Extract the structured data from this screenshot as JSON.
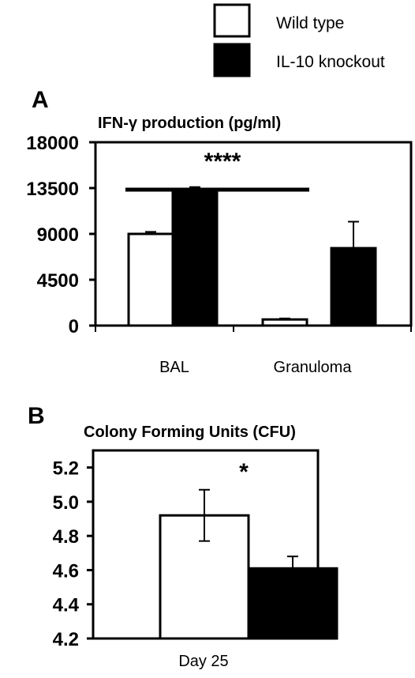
{
  "legend": [
    {
      "label": "Wild type",
      "fill": "#ffffff"
    },
    {
      "label": "IL-10 knockout",
      "fill": "#000000"
    }
  ],
  "chart_data": [
    {
      "type": "bar",
      "panel_label": "A",
      "title": "IFN-γ production (pg/ml)",
      "categories": [
        "BAL",
        "Granuloma"
      ],
      "series": [
        {
          "name": "Wild type",
          "values": [
            9000,
            600
          ],
          "errors": [
            200,
            100
          ]
        },
        {
          "name": "IL-10 knockout",
          "values": [
            13100,
            7600
          ],
          "errors": [
            500,
            2600
          ]
        }
      ],
      "ylim": [
        0,
        18000
      ],
      "yticks": [
        "0",
        "4500",
        "9000",
        "13500",
        "18000"
      ],
      "annotations": [
        {
          "text": "****",
          "kind": "significance-bar"
        }
      ]
    },
    {
      "type": "bar",
      "panel_label": "B",
      "title": "Colony Forming Units (CFU)",
      "categories": [
        "Day 25"
      ],
      "series": [
        {
          "name": "Wild type",
          "values": [
            4.92
          ],
          "errors": [
            0.15
          ]
        },
        {
          "name": "IL-10 knockout",
          "values": [
            4.61
          ],
          "errors": [
            0.07
          ]
        }
      ],
      "ylim": [
        4.2,
        5.3
      ],
      "yticks": [
        "4.2",
        "4.4",
        "4.6",
        "4.8",
        "5.0",
        "5.2"
      ],
      "annotations": [
        {
          "text": "*",
          "kind": "significance"
        }
      ]
    }
  ]
}
